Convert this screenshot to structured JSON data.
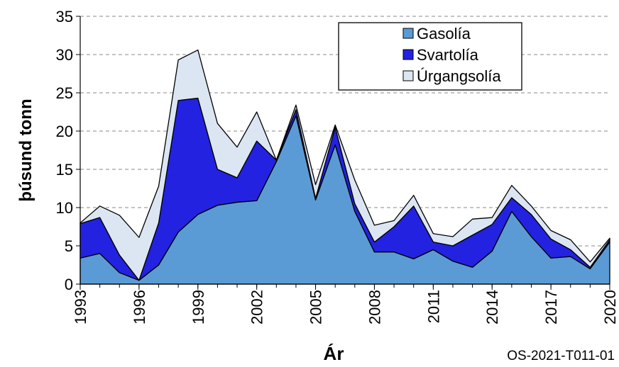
{
  "chart_data": {
    "type": "stacked_area",
    "x": [
      1993,
      1994,
      1995,
      1996,
      1997,
      1998,
      1999,
      2000,
      2001,
      2002,
      2003,
      2004,
      2005,
      2006,
      2007,
      2008,
      2009,
      2010,
      2011,
      2012,
      2013,
      2014,
      2015,
      2016,
      2017,
      2018,
      2019,
      2020
    ],
    "series": [
      {
        "name": "Gasolía",
        "color": "#5b9bd5",
        "values": [
          3.4,
          4.0,
          1.5,
          0.5,
          2.5,
          6.8,
          9.1,
          10.3,
          10.7,
          10.9,
          16.0,
          22.0,
          11.0,
          18.2,
          9.5,
          4.2,
          4.2,
          3.3,
          4.5,
          3.0,
          2.2,
          4.3,
          9.5,
          6.2,
          3.4,
          3.6,
          2.0,
          5.5
        ]
      },
      {
        "name": "Svartolía",
        "color": "#2222e0",
        "values": [
          4.5,
          4.7,
          2.3,
          0,
          5.5,
          17.2,
          15.2,
          4.7,
          3.2,
          7.8,
          0.2,
          0.8,
          0.2,
          2.3,
          1.0,
          1.3,
          3.3,
          6.9,
          1.0,
          2.0,
          4.2,
          3.5,
          1.8,
          2.9,
          2.5,
          0.9,
          0.2,
          0.3
        ]
      },
      {
        "name": "Úrgangsolía",
        "color": "#dce6f2",
        "values": [
          0.1,
          1.5,
          5.2,
          5.6,
          4.8,
          5.3,
          6.3,
          6.0,
          4.0,
          3.8,
          0,
          0.6,
          1.8,
          0.3,
          3.1,
          2.2,
          0.8,
          1.4,
          1.1,
          1.2,
          2.1,
          0.9,
          1.6,
          1.1,
          1.1,
          1.3,
          0.7,
          0.2
        ]
      }
    ],
    "xlim": [
      1993,
      2020
    ],
    "xticks": [
      1993,
      1996,
      1999,
      2002,
      2005,
      2008,
      2011,
      2014,
      2017,
      2020
    ],
    "ylim": [
      0,
      35
    ],
    "yticks": [
      0,
      5,
      10,
      15,
      20,
      25,
      30,
      35
    ],
    "x_label": "Ár",
    "y_label": "þúsund tonn",
    "source": "OS-2021-T011-01",
    "grid": true,
    "legend": "upper right"
  }
}
